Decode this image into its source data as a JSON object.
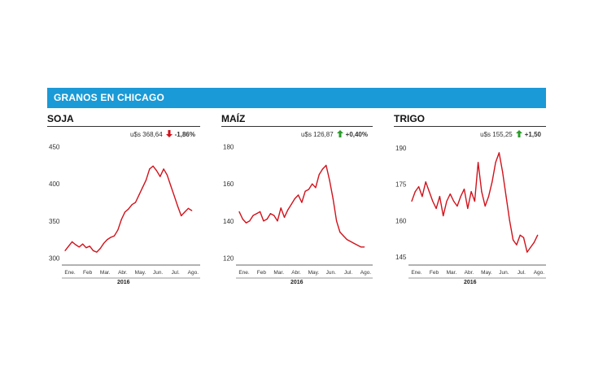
{
  "header": {
    "title": "GRANOS EN CHICAGO"
  },
  "colors": {
    "banner": "#1a9ad6",
    "line": "#d0121b",
    "up": "#2a9d2a",
    "down": "#d0121b"
  },
  "chart_data": [
    {
      "type": "line",
      "title": "SOJA",
      "price_label": "u$s 368,64",
      "change_label": "-1,86%",
      "change_direction": "down",
      "x_tick_labels": [
        "Ene.",
        "Feb",
        "Mar.",
        "Abr.",
        "May.",
        "Jun.",
        "Jul.",
        "Ago."
      ],
      "year_label": "2016",
      "y_ticks": [
        300,
        350,
        400,
        450
      ],
      "ylim": [
        295,
        455
      ],
      "series": [
        {
          "x": [
            0,
            0.2,
            0.4,
            0.6,
            0.8,
            1.0,
            1.2,
            1.4,
            1.6,
            1.8,
            2.0,
            2.2,
            2.4,
            2.6,
            2.8,
            3.0,
            3.2,
            3.4,
            3.6,
            3.8,
            4.0,
            4.2,
            4.4,
            4.6,
            4.8,
            5.0,
            5.2,
            5.4,
            5.6,
            5.8,
            6.0,
            6.2,
            6.4,
            6.6,
            6.8,
            7.0,
            7.2
          ],
          "values": [
            310,
            316,
            322,
            318,
            315,
            319,
            314,
            316,
            310,
            308,
            313,
            320,
            325,
            328,
            330,
            338,
            352,
            362,
            366,
            372,
            375,
            385,
            395,
            405,
            420,
            424,
            418,
            410,
            420,
            412,
            398,
            384,
            370,
            357,
            362,
            367,
            364
          ]
        }
      ]
    },
    {
      "type": "line",
      "title": "MAÍZ",
      "price_label": "u$s 126,87",
      "change_label": "+0,40%",
      "change_direction": "up",
      "x_tick_labels": [
        "Ene.",
        "Feb",
        "Mar.",
        "Abr.",
        "May.",
        "Jun.",
        "Jul.",
        "Ago."
      ],
      "year_label": "2016",
      "y_ticks": [
        120,
        140,
        160,
        180
      ],
      "ylim": [
        118,
        182
      ],
      "series": [
        {
          "x": [
            0,
            0.2,
            0.4,
            0.6,
            0.8,
            1.0,
            1.2,
            1.4,
            1.6,
            1.8,
            2.0,
            2.2,
            2.4,
            2.6,
            2.8,
            3.0,
            3.2,
            3.4,
            3.6,
            3.8,
            4.0,
            4.2,
            4.4,
            4.6,
            4.8,
            5.0,
            5.2,
            5.4,
            5.6,
            5.8,
            6.0,
            6.2,
            6.4,
            6.6,
            6.8,
            7.0,
            7.2
          ],
          "values": [
            145,
            141,
            139,
            140,
            143,
            144,
            145,
            140,
            141,
            144,
            143,
            140,
            147,
            142,
            146,
            149,
            152,
            154,
            150,
            156,
            157,
            160,
            158,
            165,
            168,
            170,
            162,
            152,
            140,
            134,
            132,
            130,
            129,
            128,
            127,
            126,
            126
          ]
        }
      ]
    },
    {
      "type": "line",
      "title": "TRIGO",
      "price_label": "u$s 155,25",
      "change_label": "+1,50",
      "change_direction": "up",
      "x_tick_labels": [
        "Ene.",
        "Feb",
        "Mar.",
        "Abr.",
        "May.",
        "Jun.",
        "Jul.",
        "Ago."
      ],
      "year_label": "2016",
      "y_ticks": [
        145,
        160,
        175,
        190
      ],
      "ylim": [
        143,
        192
      ],
      "series": [
        {
          "x": [
            0,
            0.2,
            0.4,
            0.6,
            0.8,
            1.0,
            1.2,
            1.4,
            1.6,
            1.8,
            2.0,
            2.2,
            2.4,
            2.6,
            2.8,
            3.0,
            3.2,
            3.4,
            3.6,
            3.8,
            4.0,
            4.2,
            4.4,
            4.6,
            4.8,
            5.0,
            5.2,
            5.4,
            5.6,
            5.8,
            6.0,
            6.2,
            6.4,
            6.6,
            6.8,
            7.0,
            7.2
          ],
          "values": [
            168,
            172,
            174,
            170,
            176,
            172,
            168,
            165,
            170,
            162,
            168,
            171,
            168,
            166,
            170,
            173,
            165,
            172,
            168,
            184,
            172,
            166,
            170,
            176,
            184,
            188,
            180,
            170,
            160,
            152,
            150,
            154,
            153,
            147,
            149,
            151,
            154
          ]
        }
      ]
    }
  ]
}
